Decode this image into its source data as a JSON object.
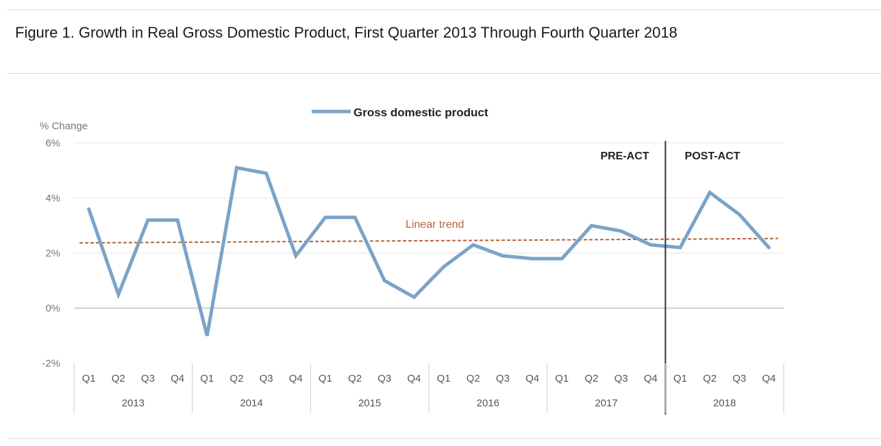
{
  "figure": {
    "title": "Figure 1. Growth in Real Gross Domestic Product, First Quarter 2013 Through Fourth Quarter 2018"
  },
  "chart_data": {
    "type": "line",
    "ylabel": "% Change",
    "ylim": [
      -2,
      6
    ],
    "yticks": [
      "6%",
      "4%",
      "2%",
      "0%",
      "-2%"
    ],
    "ytick_values": [
      6,
      4,
      2,
      0,
      -2
    ],
    "years": [
      "2013",
      "2014",
      "2015",
      "2016",
      "2017",
      "2018"
    ],
    "quarters": [
      "Q1",
      "Q2",
      "Q3",
      "Q4"
    ],
    "legend_position": "top-center",
    "grid": true,
    "series": [
      {
        "name": "Gross domestic product",
        "color": "#7ba3c9",
        "values": [
          3.6,
          0.5,
          3.2,
          3.2,
          -1.0,
          5.1,
          4.9,
          1.9,
          3.3,
          3.3,
          1.0,
          0.4,
          1.5,
          2.3,
          1.9,
          1.8,
          1.8,
          3.0,
          2.8,
          2.3,
          2.2,
          4.2,
          3.4,
          2.2
        ]
      }
    ],
    "trend": {
      "label": "Linear trend",
      "color": "#b4623b",
      "start": 2.37,
      "end": 2.53
    },
    "divider": {
      "after_index": 19,
      "left_label": "PRE-ACT",
      "right_label": "POST-ACT"
    }
  }
}
